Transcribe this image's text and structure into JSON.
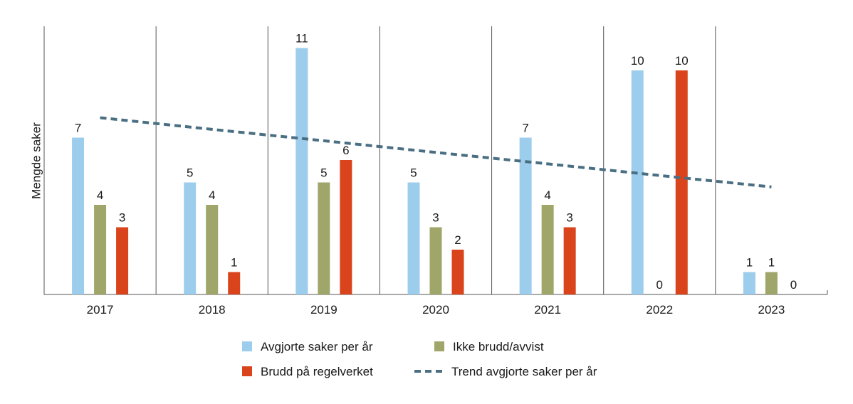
{
  "chart_data": {
    "type": "bar",
    "title": "",
    "xlabel": "",
    "ylabel": "Mengde saker",
    "categories": [
      "2017",
      "2018",
      "2019",
      "2020",
      "2021",
      "2022",
      "2023"
    ],
    "ylim": [
      0,
      12
    ],
    "grid": "vertical separators between categories",
    "legend_placement": "bottom",
    "series": [
      {
        "name": "Avgjorte saker per år",
        "type": "bar",
        "color": "#9dcdec",
        "values": [
          7,
          5,
          11,
          5,
          7,
          10,
          1
        ]
      },
      {
        "name": "Ikke brudd/avvist",
        "type": "bar",
        "color": "#a0a66a",
        "values": [
          4,
          4,
          5,
          3,
          4,
          0,
          1
        ]
      },
      {
        "name": "Brudd på regelverket",
        "type": "bar",
        "color": "#d9441c",
        "values": [
          3,
          1,
          6,
          2,
          3,
          10,
          0
        ]
      },
      {
        "name": "Trend avgjorte saker per år",
        "type": "line",
        "style": "dashed",
        "color": "#4a6f82",
        "values": [
          7.89,
          7.37,
          6.86,
          6.34,
          5.83,
          5.31,
          4.8
        ]
      }
    ]
  }
}
